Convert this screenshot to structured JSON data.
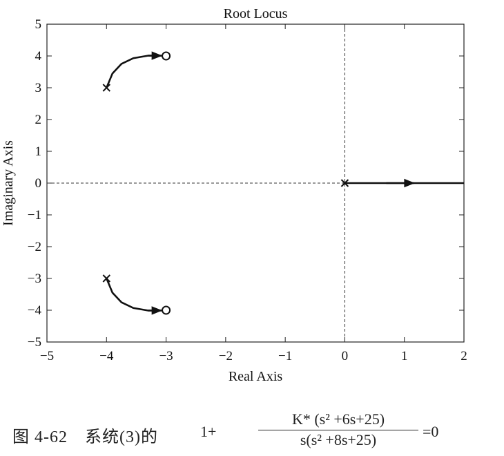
{
  "chart_data": {
    "type": "line",
    "title": "Root Locus",
    "xlabel": "Real Axis",
    "ylabel": "Imaginary Axis",
    "xlim": [
      -5,
      2
    ],
    "ylim": [
      -5,
      5
    ],
    "xticks": [
      -5,
      -4,
      -3,
      -2,
      -1,
      0,
      1,
      2
    ],
    "yticks": [
      -5,
      -4,
      -3,
      -2,
      -1,
      0,
      1,
      2,
      3,
      4,
      5
    ],
    "xtick_labels": [
      "−5",
      "−4",
      "−3",
      "−2",
      "−1",
      "0",
      "1",
      "2"
    ],
    "ytick_labels": [
      "−5",
      "−4",
      "−3",
      "−2",
      "−1",
      "0",
      "1",
      "2",
      "3",
      "4",
      "5"
    ],
    "poles": [
      [
        0,
        0
      ],
      [
        -4,
        3
      ],
      [
        -4,
        -3
      ]
    ],
    "zeros": [
      [
        -3,
        4
      ],
      [
        -3,
        -4
      ]
    ],
    "series": [
      {
        "x": [
          -4,
          -3.9,
          -3.75,
          -3.55,
          -3.3,
          -3.1,
          -3
        ],
        "y": [
          3,
          3.45,
          3.75,
          3.93,
          4.01,
          4.01,
          4
        ]
      },
      {
        "x": [
          -4,
          -3.9,
          -3.75,
          -3.55,
          -3.3,
          -3.1,
          -3
        ],
        "y": [
          -3,
          -3.45,
          -3.75,
          -3.93,
          -4.01,
          -4.01,
          -4
        ]
      },
      {
        "x": [
          0,
          2
        ],
        "y": [
          0,
          0
        ]
      }
    ],
    "grid": false,
    "axis_lines": "dashed"
  },
  "caption": {
    "label": "图 4-62　系统(3)的",
    "one": "1+",
    "numerator": "K* (s² +6s+25)",
    "denominator": "s(s² +8s+25)",
    "rhs": "=0"
  }
}
